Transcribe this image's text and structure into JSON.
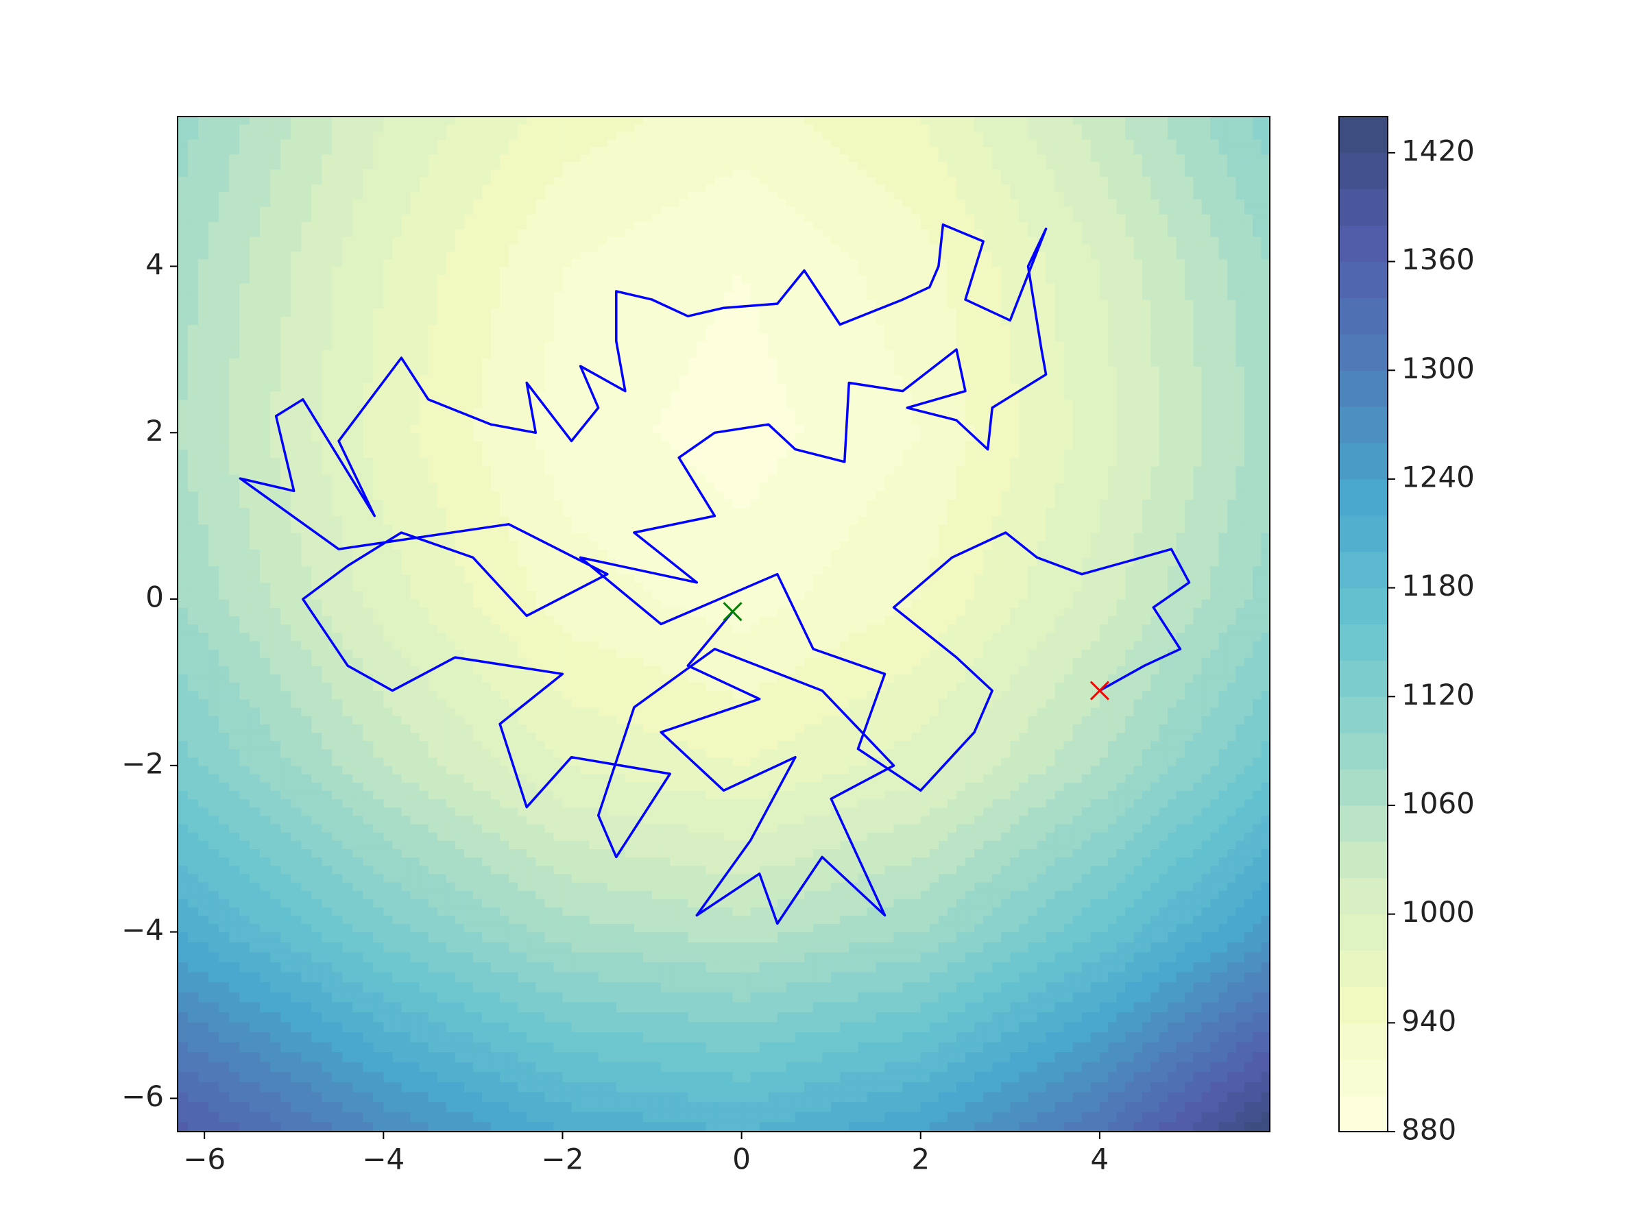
{
  "chart_data": {
    "type": "contour_path",
    "xlim": [
      -6.3,
      5.9
    ],
    "ylim": [
      -6.4,
      5.8
    ],
    "xticks": [
      {
        "value": -6,
        "label": "−6"
      },
      {
        "value": -4,
        "label": "−4"
      },
      {
        "value": -2,
        "label": "−2"
      },
      0,
      2,
      4
    ],
    "yticks": [
      {
        "value": -6,
        "label": "−6"
      },
      {
        "value": -4,
        "label": "−4"
      },
      {
        "value": -2,
        "label": "−2"
      },
      0,
      2,
      4
    ],
    "grid_x": [
      -6.3,
      -4,
      -2,
      0,
      2,
      4,
      5.9
    ],
    "grid_y": [
      -6.4,
      -4,
      -2,
      0,
      2,
      4,
      5.8
    ],
    "z": [
      [
        1370,
        1280,
        1220,
        1200,
        1240,
        1320,
        1440
      ],
      [
        1220,
        1130,
        1070,
        1050,
        1080,
        1160,
        1250
      ],
      [
        1130,
        1040,
        980,
        960,
        990,
        1060,
        1150
      ],
      [
        1080,
        990,
        930,
        910,
        940,
        1010,
        1090
      ],
      [
        1060,
        970,
        910,
        890,
        920,
        990,
        1070
      ],
      [
        1070,
        980,
        920,
        900,
        930,
        1000,
        1080
      ],
      [
        1090,
        1000,
        950,
        930,
        960,
        1030,
        1110
      ]
    ],
    "levels": [
      880,
      900,
      920,
      940,
      960,
      980,
      1000,
      1020,
      1040,
      1060,
      1080,
      1100,
      1120,
      1140,
      1160,
      1180,
      1200,
      1220,
      1240,
      1260,
      1280,
      1300,
      1320,
      1340,
      1360,
      1380,
      1400,
      1420,
      1440
    ],
    "clim": [
      880,
      1440
    ],
    "cticks": [
      880,
      940,
      1000,
      1060,
      1120,
      1180,
      1240,
      1300,
      1360,
      1420
    ],
    "colormap": "YlGnBu",
    "alpha": 0.8,
    "series": [
      {
        "color": "#0000ff",
        "marker": "line",
        "x": [
          -0.1,
          -0.6,
          0.2,
          -0.9,
          -0.2,
          0.6,
          0.1,
          -0.5,
          0.2,
          0.4,
          0.9,
          1.6,
          1.0,
          1.7,
          0.9,
          -0.3,
          -1.2,
          -1.6,
          -1.4,
          -0.8,
          -1.9,
          -2.4,
          -2.7,
          -2.0,
          -3.2,
          -3.9,
          -4.4,
          -4.9,
          -4.4,
          -3.8,
          -3.0,
          -2.4,
          -1.5,
          -2.6,
          -4.5,
          -5.6,
          -5.0,
          -5.2,
          -4.9,
          -4.1,
          -4.5,
          -3.8,
          -3.5,
          -2.8,
          -2.3,
          -2.4,
          -1.9,
          -1.6,
          -1.8,
          -1.3,
          -1.4,
          -1.4,
          -1.0,
          -0.6,
          -0.2,
          0.4,
          0.7,
          1.1,
          1.8,
          2.1,
          2.2,
          2.25,
          2.7,
          2.5,
          3.0,
          3.4,
          3.2,
          3.35,
          3.4,
          2.8,
          2.75,
          2.4,
          1.85,
          2.5,
          2.4,
          1.8,
          1.2,
          1.15,
          0.6,
          0.3,
          -0.3,
          -0.7,
          -0.3,
          -1.2,
          -0.5,
          -1.8,
          -0.9,
          0.4,
          0.8,
          1.6,
          1.3,
          2.0,
          2.6,
          2.8,
          2.4,
          1.7,
          2.35,
          2.95,
          3.3,
          3.8,
          4.3,
          4.8,
          5.0,
          4.6,
          4.9,
          4.5,
          4.0
        ],
        "y": [
          -0.15,
          -0.8,
          -1.2,
          -1.6,
          -2.3,
          -1.9,
          -2.9,
          -3.8,
          -3.3,
          -3.9,
          -3.1,
          -3.8,
          -2.4,
          -2.0,
          -1.1,
          -0.6,
          -1.3,
          -2.6,
          -3.1,
          -2.1,
          -1.9,
          -2.5,
          -1.5,
          -0.9,
          -0.7,
          -1.1,
          -0.8,
          0.0,
          0.4,
          0.8,
          0.5,
          -0.2,
          0.3,
          0.9,
          0.6,
          1.45,
          1.3,
          2.2,
          2.4,
          1.0,
          1.9,
          2.9,
          2.4,
          2.1,
          2.0,
          2.6,
          1.9,
          2.3,
          2.8,
          2.5,
          3.1,
          3.7,
          3.6,
          3.4,
          3.5,
          3.55,
          3.95,
          3.3,
          3.6,
          3.75,
          4.0,
          4.5,
          4.3,
          3.6,
          3.35,
          4.45,
          4.0,
          3.0,
          2.7,
          2.3,
          1.8,
          2.15,
          2.3,
          2.5,
          3.0,
          2.5,
          2.6,
          1.65,
          1.8,
          2.1,
          2.0,
          1.7,
          1.0,
          0.8,
          0.2,
          0.5,
          -0.3,
          0.3,
          -0.6,
          -0.9,
          -1.8,
          -2.3,
          -1.6,
          -1.1,
          -0.7,
          -0.1,
          0.5,
          0.8,
          0.5,
          0.3,
          0.45,
          0.6,
          0.2,
          -0.1,
          -0.6,
          -0.8,
          -1.1
        ]
      },
      {
        "color": "#008000",
        "marker": "x",
        "x": [
          -0.1
        ],
        "y": [
          -0.15
        ]
      },
      {
        "color": "#ff0000",
        "marker": "x",
        "x": [
          4.0
        ],
        "y": [
          -1.1
        ]
      }
    ]
  }
}
